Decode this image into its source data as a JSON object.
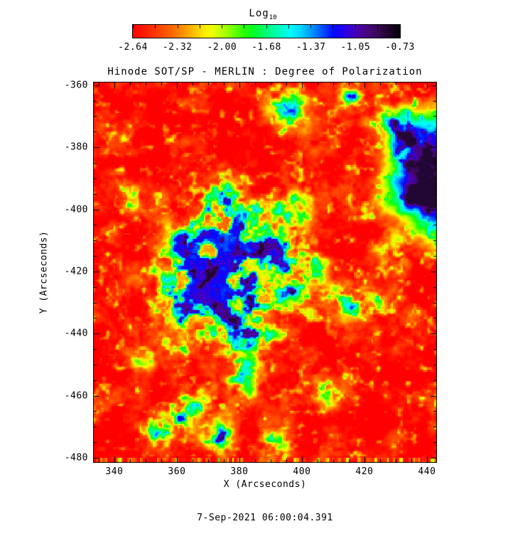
{
  "figure": {
    "background_color": "#ffffff",
    "text_color": "#000000"
  },
  "colorbar": {
    "label": "Log",
    "label_subscript": "10",
    "tick_labels": [
      "-2.64",
      "-2.32",
      "-2.00",
      "-1.68",
      "-1.37",
      "-1.05",
      "-0.73"
    ],
    "min": -2.64,
    "max": -0.73,
    "minor_tick_count": 13,
    "colormap_stops": [
      [
        0.0,
        255,
        0,
        0
      ],
      [
        0.05,
        255,
        34,
        0
      ],
      [
        0.1,
        255,
        70,
        0
      ],
      [
        0.15,
        255,
        108,
        0
      ],
      [
        0.2,
        255,
        160,
        0
      ],
      [
        0.24,
        255,
        205,
        0
      ],
      [
        0.27,
        255,
        240,
        0
      ],
      [
        0.3,
        235,
        255,
        0
      ],
      [
        0.34,
        175,
        255,
        0
      ],
      [
        0.38,
        105,
        255,
        0
      ],
      [
        0.42,
        30,
        255,
        0
      ],
      [
        0.46,
        0,
        255,
        50
      ],
      [
        0.5,
        0,
        255,
        120
      ],
      [
        0.55,
        0,
        255,
        190
      ],
      [
        0.59,
        0,
        252,
        255
      ],
      [
        0.63,
        0,
        210,
        255
      ],
      [
        0.67,
        0,
        150,
        255
      ],
      [
        0.71,
        0,
        80,
        255
      ],
      [
        0.75,
        0,
        10,
        255
      ],
      [
        0.8,
        45,
        0,
        228
      ],
      [
        0.84,
        72,
        0,
        175
      ],
      [
        0.88,
        73,
        6,
        125
      ],
      [
        0.92,
        55,
        8,
        85
      ],
      [
        0.96,
        30,
        5,
        44
      ],
      [
        1.0,
        5,
        1,
        7
      ]
    ]
  },
  "chart_data": {
    "type": "heatmap",
    "title": "Hinode SOT/SP - MERLIN : Degree of Polarization",
    "xlabel": "X (Arcseconds)",
    "ylabel": "Y (Arcseconds)",
    "x_ticks": [
      340,
      360,
      380,
      400,
      420,
      440
    ],
    "y_ticks": [
      -360,
      -380,
      -400,
      -420,
      -440,
      -460,
      -480
    ],
    "minor_tick_step": 5,
    "xlim": [
      333.2,
      443.2
    ],
    "ylim": [
      -481.6,
      -358.9
    ],
    "value_quantity": "Log10 degree of polarization",
    "value_range": [
      -2.64,
      -0.73
    ],
    "legend_position": "top colorbar",
    "grid": false,
    "features": {
      "background": "quiet sun of weak polarization (~ -2.6, red) with granular orange/yellow speckle",
      "sunspot": {
        "x_arcsec": 447,
        "y_arcsec": -389,
        "core_log10": -0.8,
        "note": "dark purple/black umbra with blue penumbral ring and green-yellow halo, clipped by the right plot edge"
      },
      "plage": {
        "x_arcsec_range": [
          345,
          400
        ],
        "y_arcsec_range": [
          -450,
          -395
        ],
        "log10_range": [
          -2.0,
          -1.1
        ],
        "note": "patchy network of green/cyan/deep-blue enhanced polarization across centre-left"
      },
      "minor_patches": "diagonal green-blue streak near (355,-465) bottom-left; green streak near (395,-362) top-centre; cyan-blue blob near (416,-363); enhanced patches right of centre near (410,-430)"
    },
    "render_params": {
      "cells_x": 220,
      "cells_y": 242,
      "aspect": 1.107,
      "base_offset": -2.82,
      "base_amp": 0.62,
      "base_gamma": 1.6,
      "speckle_amp": 0.14,
      "dot_amp": 1.6,
      "dot_threshold": 0.62,
      "plage_floor": 0.22,
      "plage_noise_gain": 1.25,
      "plage_noise_scale": 2.3,
      "plage_noise_bias": 0.75,
      "plage_cap": 1.5,
      "value_clip": [
        -2.9,
        -0.82
      ],
      "plage_blobs": [
        [
          0.4,
          0.52,
          0.16,
          1.2
        ],
        [
          0.32,
          0.44,
          0.1,
          1.15
        ],
        [
          0.49,
          0.42,
          0.09,
          1.1
        ],
        [
          0.3,
          0.6,
          0.08,
          1.1
        ],
        [
          0.46,
          0.64,
          0.08,
          1.15
        ],
        [
          0.55,
          0.52,
          0.07,
          1.0
        ],
        [
          0.38,
          0.32,
          0.07,
          1.0
        ],
        [
          0.24,
          0.52,
          0.06,
          0.95
        ],
        [
          0.58,
          0.33,
          0.05,
          0.9
        ],
        [
          0.63,
          0.47,
          0.05,
          0.85
        ],
        [
          0.43,
          0.78,
          0.06,
          0.95
        ],
        [
          0.36,
          0.93,
          0.05,
          1.05
        ],
        [
          0.2,
          0.92,
          0.045,
          1.25
        ],
        [
          0.25,
          0.88,
          0.04,
          1.0
        ],
        [
          0.3,
          0.84,
          0.04,
          0.9
        ],
        [
          0.57,
          0.06,
          0.05,
          1.0
        ],
        [
          0.76,
          0.045,
          0.033,
          1.5
        ],
        [
          0.87,
          0.1,
          0.05,
          0.85
        ],
        [
          0.95,
          0.3,
          0.04,
          0.9
        ],
        [
          0.92,
          0.17,
          0.045,
          0.95
        ],
        [
          0.88,
          0.45,
          0.05,
          0.95
        ],
        [
          0.8,
          0.58,
          0.05,
          0.9
        ],
        [
          0.71,
          0.57,
          0.045,
          0.9
        ],
        [
          0.67,
          0.82,
          0.04,
          0.8
        ],
        [
          0.52,
          0.96,
          0.045,
          0.9
        ],
        [
          0.1,
          0.3,
          0.04,
          0.7
        ],
        [
          0.15,
          0.72,
          0.04,
          0.7
        ]
      ],
      "sunspot": {
        "cx": 1.035,
        "cy": 0.245,
        "edge_noise": 0.1,
        "profile_r": [
          0,
          0.085,
          0.125,
          0.165,
          0.205,
          0.26
        ],
        "profile_add": [
          1.85,
          1.72,
          1.38,
          0.92,
          0.4,
          0
        ],
        "filament_amp": 0.35
      },
      "bottom_stripe_rows": 3
    }
  },
  "caption": "7-Sep-2021 06:00:04.391"
}
